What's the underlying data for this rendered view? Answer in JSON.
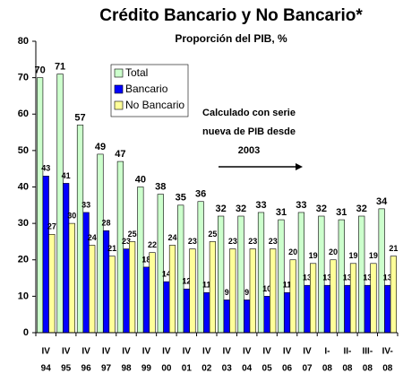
{
  "chart_data": {
    "type": "bar",
    "title": "Crédito Bancario y No Bancario*",
    "subtitle": "Proporción del PIB, %",
    "categories": [
      [
        "IV",
        "94"
      ],
      [
        "IV",
        "95"
      ],
      [
        "IV",
        "96"
      ],
      [
        "IV",
        "97"
      ],
      [
        "IV",
        "98"
      ],
      [
        "IV",
        "99"
      ],
      [
        "IV",
        "00"
      ],
      [
        "IV",
        "01"
      ],
      [
        "IV",
        "02"
      ],
      [
        "IV",
        "03"
      ],
      [
        "IV",
        "04"
      ],
      [
        "IV",
        "05"
      ],
      [
        "IV",
        "06"
      ],
      [
        "IV",
        "07"
      ],
      [
        "I-",
        "08"
      ],
      [
        "II-",
        "08"
      ],
      [
        "III-",
        "08"
      ],
      [
        "IV-",
        "08"
      ]
    ],
    "series": [
      {
        "name": "Total",
        "color": "#ccffcc",
        "values": [
          70,
          71,
          57,
          49,
          47,
          40,
          38,
          35,
          36,
          32,
          32,
          33,
          31,
          33,
          32,
          31,
          32,
          34
        ]
      },
      {
        "name": "Bancario",
        "color": "#0000ff",
        "values": [
          43,
          41,
          33,
          28,
          23,
          18,
          14,
          12,
          11,
          9,
          9,
          10,
          11,
          13,
          13,
          13,
          13,
          13
        ]
      },
      {
        "name": "No Bancario",
        "color": "#ffff99",
        "values": [
          27,
          30,
          24,
          21,
          25,
          22,
          24,
          23,
          25,
          23,
          23,
          23,
          20,
          19,
          20,
          19,
          19,
          21
        ]
      }
    ],
    "ylim": [
      0,
      80
    ],
    "yticks": [
      0,
      10,
      20,
      30,
      40,
      50,
      60,
      70,
      80
    ],
    "grid": false,
    "legend": "upper left",
    "annotation": [
      "Calculado con serie",
      "nueva de PIB desde",
      "2003"
    ]
  }
}
